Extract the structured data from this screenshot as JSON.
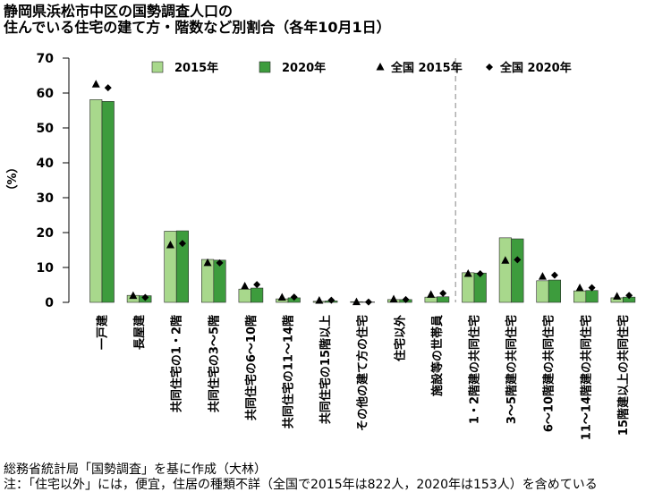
{
  "chart_data": {
    "type": "bar",
    "title": [
      "静岡県浜松市中区の国勢調査人口の",
      "住んでいる住宅の建て方・階数など別割合（各年10月1日）"
    ],
    "ylabel": "（%）",
    "xlabel": "",
    "ylim": [
      0,
      70
    ],
    "yticks": [
      0,
      10,
      20,
      30,
      40,
      50,
      60,
      70
    ],
    "grid": false,
    "legend_position": "top",
    "divider_after_index": 9,
    "categories": [
      "一戸建",
      "長屋建",
      "共同住宅の1・2階",
      "共同住宅の3～5階",
      "共同住宅の6～10階",
      "共同住宅の11～14階",
      "共同住宅の15階以上",
      "その他の建て方の住宅",
      "住宅以外",
      "施設等の世帯員",
      "1・2階建の共同住宅",
      "3～5階建の共同住宅",
      "6～10階建の共同住宅",
      "11～14階建の共同住宅",
      "15階建以上の共同住宅"
    ],
    "series": [
      {
        "name": "2015年",
        "kind": "bar",
        "color": "#a8d88c",
        "values": [
          58.1,
          2.0,
          20.4,
          12.3,
          3.8,
          1.0,
          0.3,
          0.2,
          0.8,
          1.5,
          8.5,
          18.5,
          6.2,
          3.3,
          1.3
        ]
      },
      {
        "name": "2020年",
        "kind": "bar",
        "color": "#3d9c3d",
        "values": [
          57.6,
          1.9,
          20.5,
          12.1,
          4.1,
          1.3,
          0.4,
          0.1,
          0.8,
          1.6,
          8.4,
          18.2,
          6.4,
          3.4,
          1.5
        ]
      },
      {
        "name": "全国 2015年",
        "kind": "marker",
        "marker": "triangle",
        "color": "#000000",
        "values": [
          62.5,
          1.9,
          16.4,
          11.3,
          4.6,
          1.4,
          0.5,
          0.1,
          0.9,
          2.2,
          8.2,
          12.0,
          7.4,
          4.1,
          1.7
        ]
      },
      {
        "name": "全国 2020年",
        "kind": "marker",
        "marker": "diamond",
        "color": "#000000",
        "values": [
          61.5,
          1.4,
          16.9,
          11.3,
          5.1,
          1.5,
          0.6,
          0.1,
          0.8,
          2.6,
          8.2,
          12.2,
          7.8,
          4.2,
          2.0
        ]
      }
    ]
  },
  "notes": {
    "source": "総務省統計局「国勢調査」を基に作成（大林）",
    "footnote": "注：「住宅以外」には，便宜，住居の種類不詳（全国で2015年は822人，2020年は153人）を含めている"
  }
}
